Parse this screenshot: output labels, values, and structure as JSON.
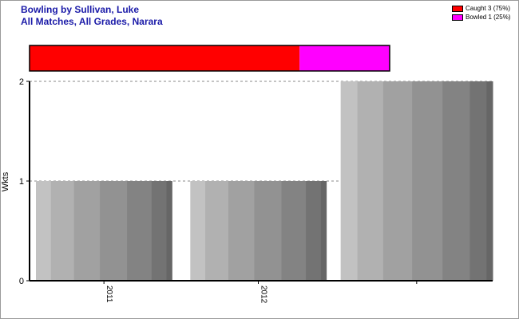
{
  "chart_data": {
    "type": "bar",
    "title": "Bowling by Sullivan, Luke",
    "subtitle": "All Matches, All Grades, Narara",
    "ylabel": "Wkts",
    "xlabel": "",
    "categories": [
      "2011",
      "2012",
      ""
    ],
    "values": [
      1,
      1,
      2
    ],
    "ylim": [
      0,
      2
    ],
    "yticks": [
      0,
      1,
      2
    ],
    "grid": true,
    "dismissals": [
      {
        "name": "Caught 3 (75%)",
        "value": 3,
        "color": "#ff0000"
      },
      {
        "name": "Bowled 1 (25%)",
        "value": 1,
        "color": "#ff00ff"
      }
    ],
    "legend_position": "top-right"
  }
}
